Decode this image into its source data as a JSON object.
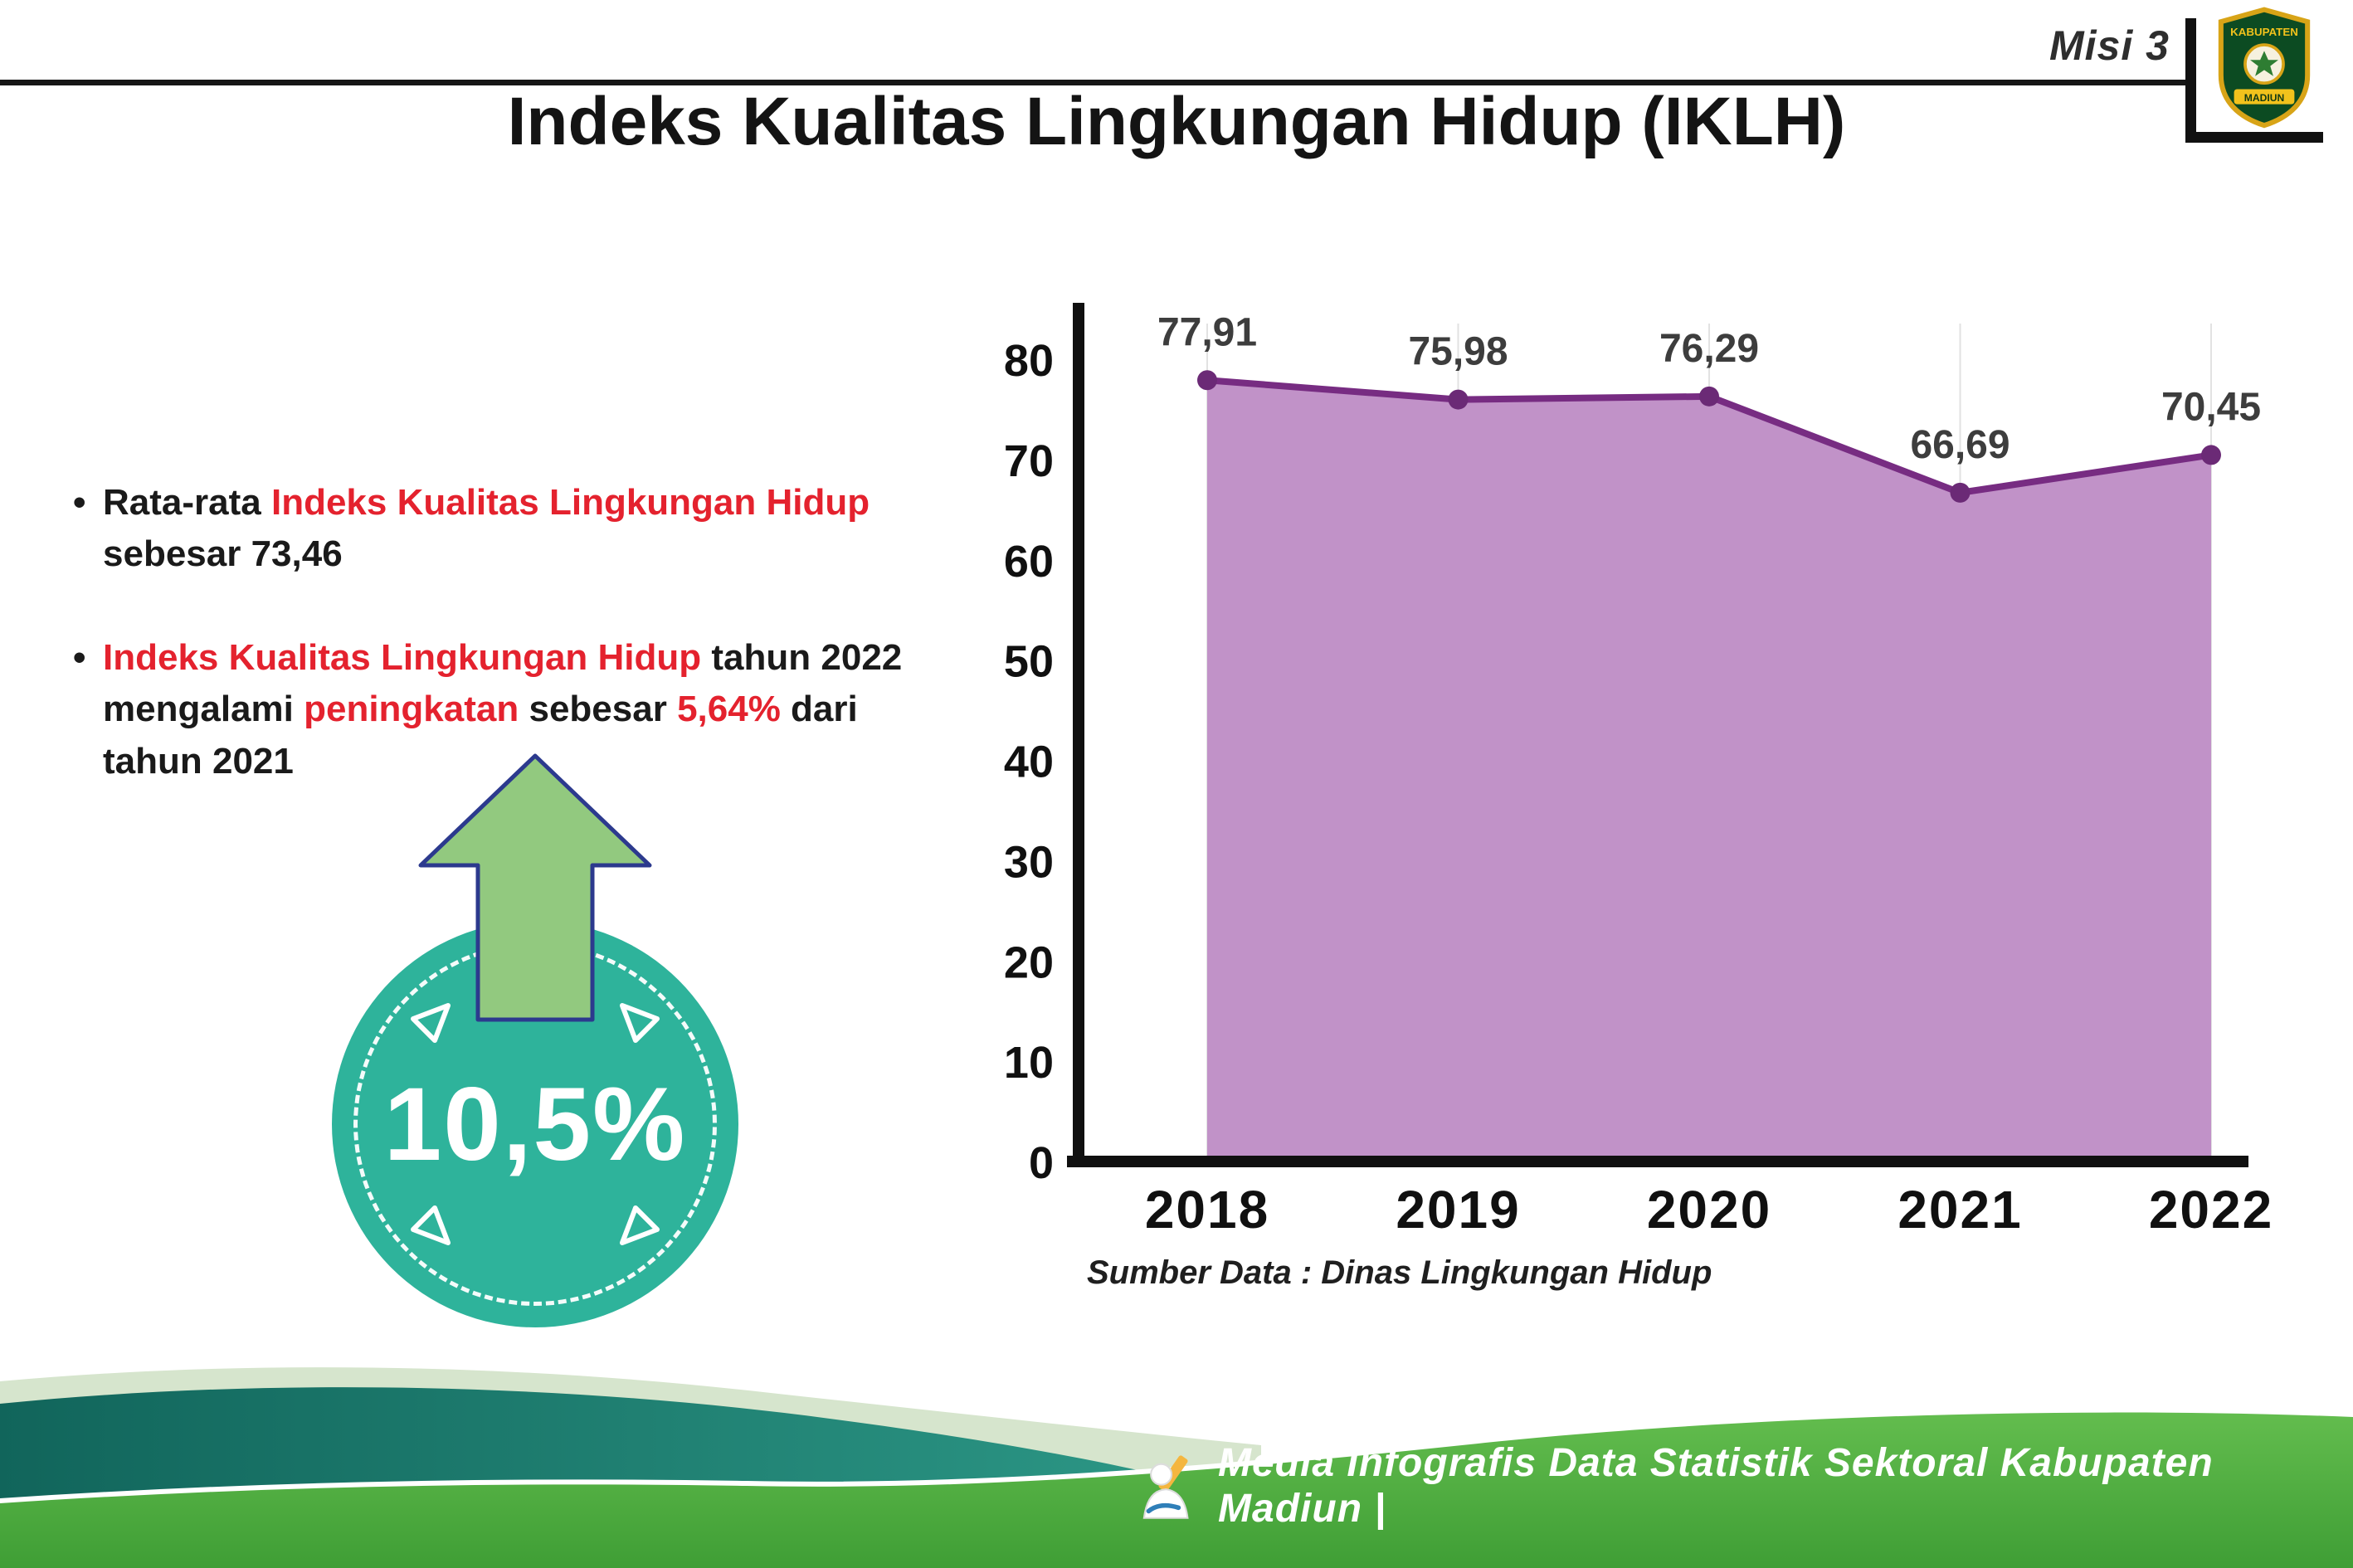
{
  "header": {
    "misi_label": "Misi 3",
    "title": "Indeks Kualitas Lingkungan Hidup (IKLH)",
    "logo_top_text": "KABUPATEN",
    "logo_bottom_text": "MADIUN"
  },
  "bullets": {
    "b1p1": "Rata-rata ",
    "b1p2": "Indeks Kualitas Lingkungan Hidup",
    "b1p3": "sebesar 73,46",
    "b2p1": "Indeks Kualitas Lingkungan Hidup",
    "b2p2": " tahun 2022",
    "b2p3": "mengalami ",
    "b2p4": "peningkatan",
    "b2p5": " sebesar ",
    "b2p6": "5,64%",
    "b2p7": " dari",
    "b2p8": "tahun 2021"
  },
  "badge": {
    "value": "10,5%"
  },
  "chart_data": {
    "type": "area",
    "categories": [
      "2018",
      "2019",
      "2020",
      "2021",
      "2022"
    ],
    "values": [
      77.91,
      75.98,
      76.29,
      66.69,
      70.45
    ],
    "value_labels": [
      "77,91",
      "75,98",
      "76,29",
      "66,69",
      "70,45"
    ],
    "title": "",
    "xlabel": "",
    "ylabel": "",
    "ylim": [
      0,
      80
    ],
    "yticks": [
      0,
      10,
      20,
      30,
      40,
      50,
      60,
      70,
      80
    ],
    "grid": "vertical",
    "legend": "none",
    "colors": {
      "area_fill": "#c192c8",
      "line": "#772c82",
      "point": "#6b2a76",
      "axis": "#101010",
      "grid_line": "#e2e2e2",
      "data_label": "#3d3d3d"
    },
    "source_note": "Sumber Data : Dinas Lingkungan Hidup"
  },
  "footer": {
    "caption": "Media Infografis Data Statistik Sektoral Kabupaten Madiun |"
  },
  "theme": {
    "accent_red": "#e4222e",
    "badge_teal": "#2eb39b",
    "arrow_green": "#92c97f",
    "arrow_outline_navy": "#2c3a8e",
    "footer_green": "#4aa93e",
    "footer_teal": "#1e7f72",
    "footer_mint": "#d6e5cd"
  }
}
